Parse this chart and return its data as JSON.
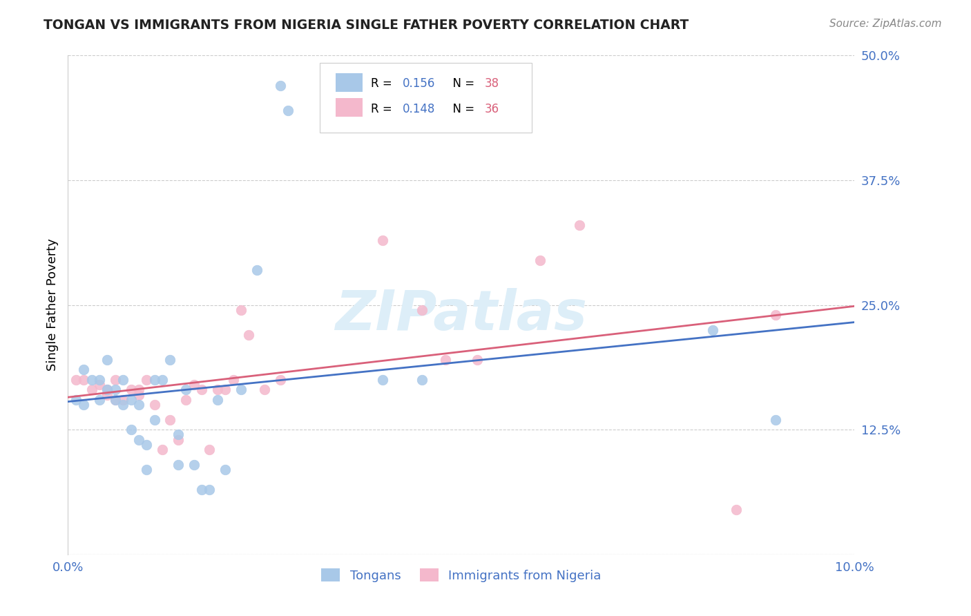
{
  "title": "TONGAN VS IMMIGRANTS FROM NIGERIA SINGLE FATHER POVERTY CORRELATION CHART",
  "source": "Source: ZipAtlas.com",
  "ylabel": "Single Father Poverty",
  "xlim": [
    0.0,
    0.1
  ],
  "ylim": [
    0.0,
    0.5
  ],
  "xticks": [
    0.0,
    0.02,
    0.04,
    0.06,
    0.08,
    0.1
  ],
  "xtick_labels": [
    "0.0%",
    "",
    "",
    "",
    "",
    "10.0%"
  ],
  "yticks": [
    0.0,
    0.125,
    0.25,
    0.375,
    0.5
  ],
  "ytick_labels": [
    "",
    "12.5%",
    "25.0%",
    "37.5%",
    "50.0%"
  ],
  "blue_color": "#a8c8e8",
  "pink_color": "#f4b8cc",
  "blue_line_color": "#4472c4",
  "pink_line_color": "#d9607a",
  "blue_text_color": "#4472c4",
  "pink_text_color": "#d9607a",
  "axis_label_color": "#4472c4",
  "title_color": "#222222",
  "grid_color": "#cccccc",
  "tongans_x": [
    0.001,
    0.002,
    0.002,
    0.003,
    0.004,
    0.004,
    0.005,
    0.005,
    0.006,
    0.006,
    0.007,
    0.007,
    0.008,
    0.008,
    0.009,
    0.009,
    0.01,
    0.01,
    0.011,
    0.011,
    0.012,
    0.013,
    0.014,
    0.014,
    0.015,
    0.016,
    0.017,
    0.018,
    0.019,
    0.02,
    0.022,
    0.024,
    0.027,
    0.028,
    0.04,
    0.045,
    0.082,
    0.09
  ],
  "tongans_y": [
    0.155,
    0.15,
    0.185,
    0.175,
    0.155,
    0.175,
    0.165,
    0.195,
    0.155,
    0.165,
    0.15,
    0.175,
    0.125,
    0.155,
    0.115,
    0.15,
    0.085,
    0.11,
    0.135,
    0.175,
    0.175,
    0.195,
    0.09,
    0.12,
    0.165,
    0.09,
    0.065,
    0.065,
    0.155,
    0.085,
    0.165,
    0.285,
    0.47,
    0.445,
    0.175,
    0.175,
    0.225,
    0.135
  ],
  "nigeria_x": [
    0.001,
    0.002,
    0.003,
    0.004,
    0.005,
    0.005,
    0.006,
    0.006,
    0.007,
    0.008,
    0.009,
    0.009,
    0.01,
    0.011,
    0.012,
    0.013,
    0.014,
    0.015,
    0.016,
    0.017,
    0.018,
    0.019,
    0.02,
    0.021,
    0.022,
    0.023,
    0.025,
    0.027,
    0.04,
    0.045,
    0.048,
    0.052,
    0.06,
    0.065,
    0.085,
    0.09
  ],
  "nigeria_y": [
    0.175,
    0.175,
    0.165,
    0.17,
    0.16,
    0.165,
    0.175,
    0.155,
    0.155,
    0.165,
    0.16,
    0.165,
    0.175,
    0.15,
    0.105,
    0.135,
    0.115,
    0.155,
    0.17,
    0.165,
    0.105,
    0.165,
    0.165,
    0.175,
    0.245,
    0.22,
    0.165,
    0.175,
    0.315,
    0.245,
    0.195,
    0.195,
    0.295,
    0.33,
    0.045,
    0.24
  ],
  "watermark": "ZIPatlas",
  "watermark_color": "#ddeef8"
}
